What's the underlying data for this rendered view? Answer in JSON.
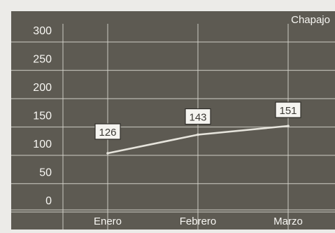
{
  "colors": {
    "page_background": "#ecebe8",
    "plot_background": "#5d5a52",
    "grid_line": "#d8d6cf",
    "series_line": "#e6e4dc",
    "text": "#f7f6f2",
    "label_box_fill": "#f5f4f0",
    "label_box_text": "#3b3934"
  },
  "chart_data": {
    "type": "line",
    "title": "Chapajo",
    "xlabel": "",
    "ylabel": "",
    "categories": [
      "Enero",
      "Febrero",
      "Marzo"
    ],
    "series": [
      {
        "values": [
          126,
          143,
          151
        ]
      }
    ],
    "y_ticks": [
      "0",
      "50",
      "100",
      "150",
      "200",
      "250",
      "300"
    ],
    "ylim": [
      -25,
      320
    ],
    "grid": true,
    "legend": "none",
    "data_labels": true
  }
}
